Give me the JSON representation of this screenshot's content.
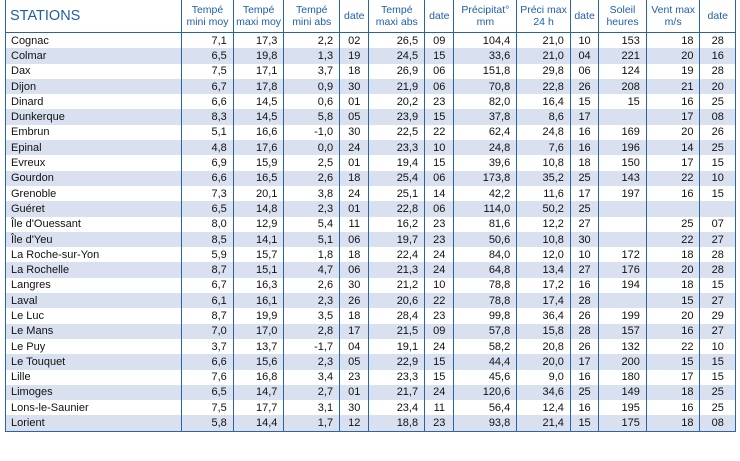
{
  "headers": [
    "STATIONS",
    "Tempé mini moy",
    "Tempé maxi moy",
    "Tempé mini abs",
    "date",
    "Tempé maxi abs",
    "date",
    "Précipitat° mm",
    "Préci max 24 h",
    "date",
    "Soleil heures",
    "Vent max m/s",
    "date"
  ],
  "rows": [
    [
      "Cognac",
      "7,1",
      "17,3",
      "2,2",
      "02",
      "26,5",
      "09",
      "104,4",
      "21,0",
      "10",
      "153",
      "18",
      "28"
    ],
    [
      "Colmar",
      "6,5",
      "19,8",
      "1,3",
      "19",
      "24,5",
      "15",
      "33,6",
      "21,0",
      "04",
      "221",
      "20",
      "16"
    ],
    [
      "Dax",
      "7,5",
      "17,1",
      "3,7",
      "18",
      "26,9",
      "06",
      "151,8",
      "29,8",
      "06",
      "124",
      "19",
      "28"
    ],
    [
      "Dijon",
      "6,7",
      "17,8",
      "0,9",
      "30",
      "21,9",
      "06",
      "70,8",
      "22,8",
      "26",
      "208",
      "21",
      "20"
    ],
    [
      "Dinard",
      "6,6",
      "14,5",
      "0,6",
      "01",
      "20,2",
      "23",
      "82,0",
      "16,4",
      "15",
      "15",
      "16",
      "25"
    ],
    [
      "Dunkerque",
      "8,3",
      "14,5",
      "5,8",
      "05",
      "23,9",
      "15",
      "37,8",
      "8,6",
      "17",
      "",
      "17",
      "08"
    ],
    [
      "Embrun",
      "5,1",
      "16,6",
      "-1,0",
      "30",
      "22,5",
      "22",
      "62,4",
      "24,8",
      "16",
      "169",
      "20",
      "26"
    ],
    [
      "Epinal",
      "4,8",
      "17,6",
      "0,0",
      "24",
      "23,3",
      "10",
      "24,8",
      "7,6",
      "16",
      "196",
      "14",
      "25"
    ],
    [
      "Evreux",
      "6,9",
      "15,9",
      "2,5",
      "01",
      "19,4",
      "15",
      "39,6",
      "10,8",
      "18",
      "150",
      "17",
      "15"
    ],
    [
      "Gourdon",
      "6,6",
      "16,5",
      "2,6",
      "18",
      "25,4",
      "06",
      "173,8",
      "35,2",
      "25",
      "143",
      "22",
      "10"
    ],
    [
      "Grenoble",
      "7,3",
      "20,1",
      "3,8",
      "24",
      "25,1",
      "14",
      "42,2",
      "11,6",
      "17",
      "197",
      "16",
      "15"
    ],
    [
      "Guéret",
      "6,5",
      "14,8",
      "2,3",
      "01",
      "22,8",
      "06",
      "114,0",
      "50,2",
      "25",
      "",
      "",
      ""
    ],
    [
      "Île d'Ouessant",
      "8,0",
      "12,9",
      "5,4",
      "11",
      "16,2",
      "23",
      "81,6",
      "12,2",
      "27",
      "",
      "25",
      "07"
    ],
    [
      "Île d'Yeu",
      "8,5",
      "14,1",
      "5,1",
      "06",
      "19,7",
      "23",
      "50,6",
      "10,8",
      "30",
      "",
      "22",
      "27"
    ],
    [
      "La Roche-sur-Yon",
      "5,9",
      "15,7",
      "1,8",
      "18",
      "22,4",
      "24",
      "84,0",
      "12,0",
      "10",
      "172",
      "18",
      "28"
    ],
    [
      "La Rochelle",
      "8,7",
      "15,1",
      "4,7",
      "06",
      "21,3",
      "24",
      "64,8",
      "13,4",
      "27",
      "176",
      "20",
      "28"
    ],
    [
      "Langres",
      "6,7",
      "16,3",
      "2,6",
      "30",
      "21,2",
      "10",
      "78,8",
      "17,2",
      "16",
      "194",
      "18",
      "15"
    ],
    [
      "Laval",
      "6,1",
      "16,1",
      "2,3",
      "26",
      "20,6",
      "22",
      "78,8",
      "17,4",
      "28",
      "",
      "15",
      "27"
    ],
    [
      "Le Luc",
      "8,7",
      "19,9",
      "3,5",
      "18",
      "28,4",
      "23",
      "99,8",
      "36,4",
      "26",
      "199",
      "20",
      "29"
    ],
    [
      "Le Mans",
      "7,0",
      "17,0",
      "2,8",
      "17",
      "21,5",
      "09",
      "57,8",
      "15,8",
      "28",
      "157",
      "16",
      "27"
    ],
    [
      "Le Puy",
      "3,7",
      "13,7",
      "-1,7",
      "04",
      "19,1",
      "24",
      "58,2",
      "20,8",
      "26",
      "132",
      "22",
      "10"
    ],
    [
      "Le Touquet",
      "6,6",
      "15,6",
      "2,3",
      "05",
      "22,9",
      "15",
      "44,4",
      "20,0",
      "17",
      "200",
      "15",
      "15"
    ],
    [
      "Lille",
      "7,6",
      "16,8",
      "3,4",
      "23",
      "23,3",
      "15",
      "45,6",
      "9,0",
      "16",
      "180",
      "17",
      "15"
    ],
    [
      "Limoges",
      "6,5",
      "14,7",
      "2,7",
      "01",
      "21,7",
      "24",
      "120,6",
      "34,6",
      "25",
      "149",
      "18",
      "25"
    ],
    [
      "Lons-le-Saunier",
      "7,5",
      "17,7",
      "3,1",
      "30",
      "23,4",
      "11",
      "56,4",
      "12,4",
      "16",
      "195",
      "16",
      "25"
    ],
    [
      "Lorient",
      "5,8",
      "14,4",
      "1,7",
      "12",
      "18,8",
      "23",
      "93,8",
      "21,4",
      "15",
      "175",
      "18",
      "08"
    ]
  ]
}
